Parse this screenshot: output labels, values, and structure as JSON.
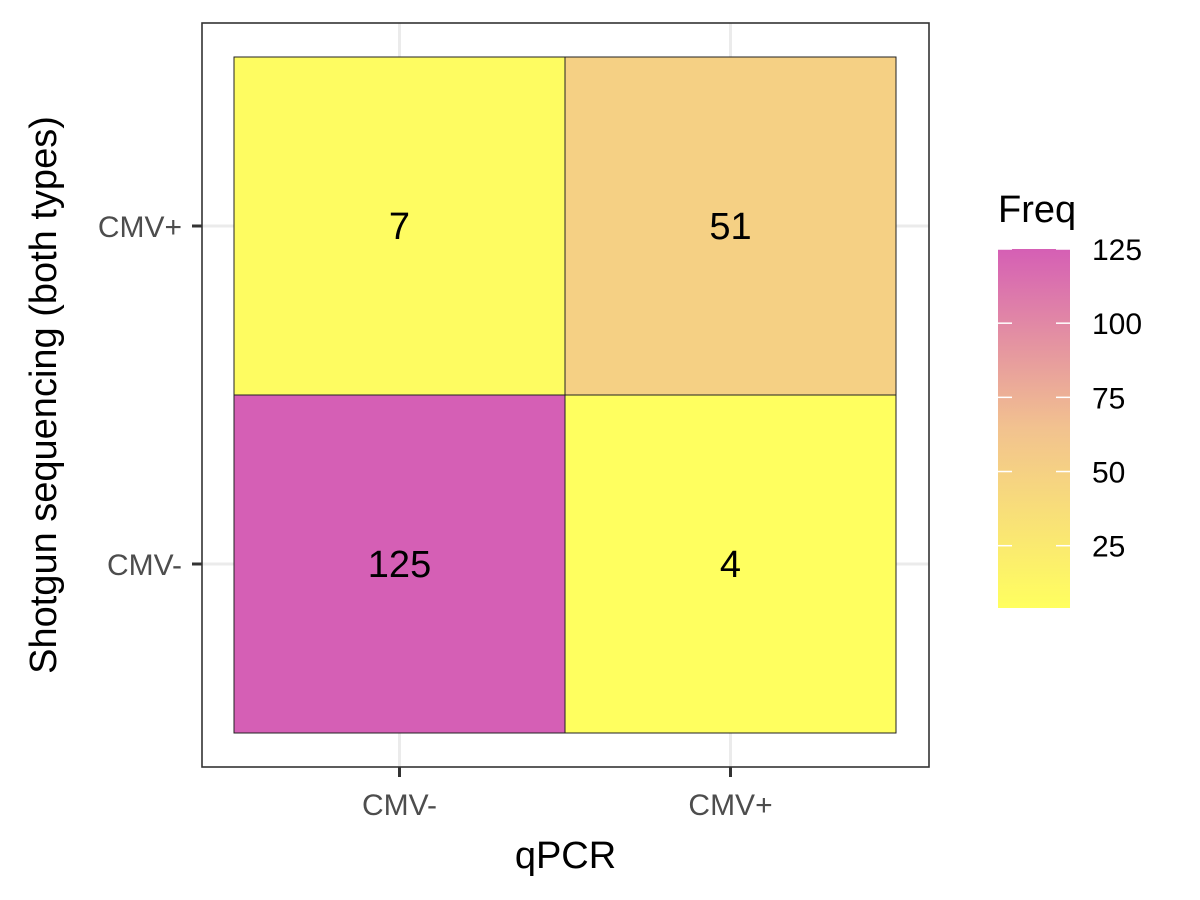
{
  "chart_data": {
    "type": "heatmap",
    "xlabel": "qPCR",
    "ylabel": "Shotgun sequencing (both types)",
    "x_categories": [
      "CMV-",
      "CMV+"
    ],
    "y_categories": [
      "CMV-",
      "CMV+"
    ],
    "cells": [
      {
        "x": "CMV-",
        "y": "CMV+",
        "value": 7,
        "label": "7"
      },
      {
        "x": "CMV+",
        "y": "CMV+",
        "value": 51,
        "label": "51"
      },
      {
        "x": "CMV-",
        "y": "CMV-",
        "value": 125,
        "label": "125"
      },
      {
        "x": "CMV+",
        "y": "CMV-",
        "value": 4,
        "label": "4"
      }
    ],
    "grid": true,
    "legend": {
      "title": "Freq",
      "position": "right",
      "min": 4,
      "max": 125,
      "ticks": [
        {
          "value": 25,
          "label": "25"
        },
        {
          "value": 50,
          "label": "50"
        },
        {
          "value": 75,
          "label": "75"
        },
        {
          "value": 100,
          "label": "100"
        },
        {
          "value": 125,
          "label": "125"
        }
      ],
      "color_low": "#FFFF5F",
      "color_mid": "#F2C28F",
      "color_high": "#D55FB5"
    }
  }
}
